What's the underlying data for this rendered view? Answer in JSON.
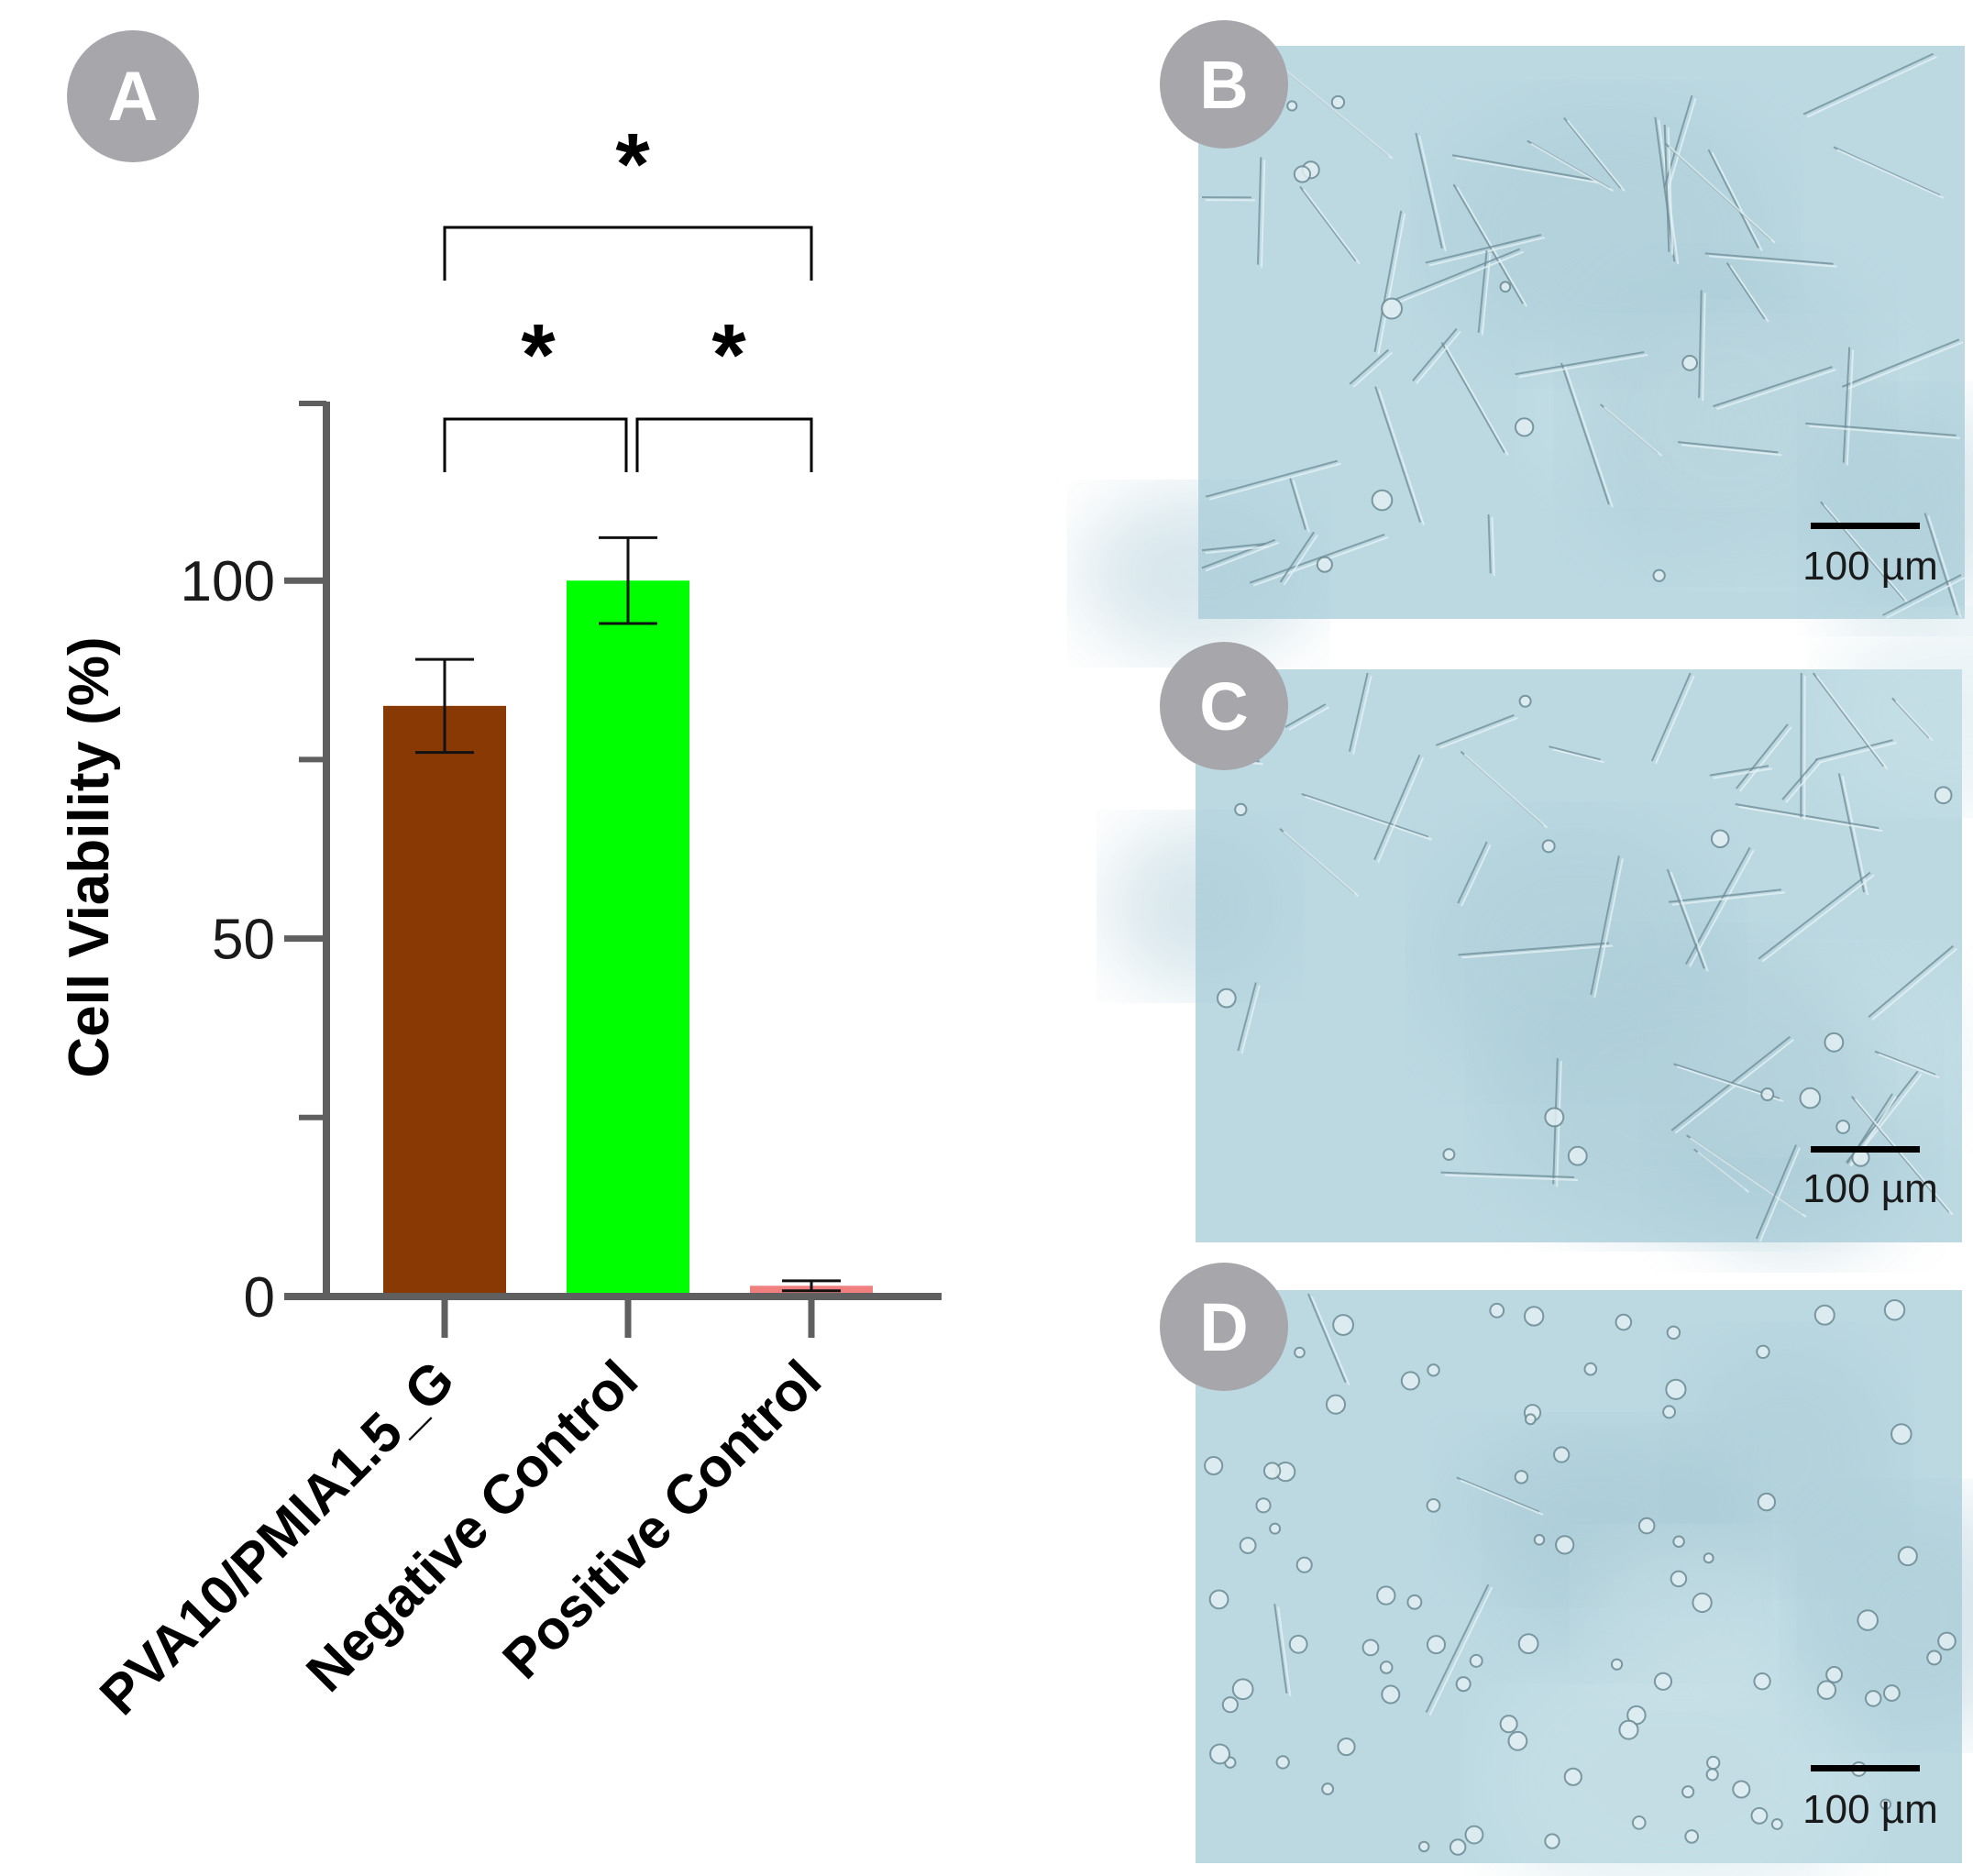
{
  "colors": {
    "axis": "#5f5f5f",
    "badge": "#a7a6ab",
    "micrograph_bg": "#bcd9e2",
    "micrograph_cell": "#6e8c96",
    "scalebar": "#000000"
  },
  "panels": {
    "a": {
      "label": "A"
    },
    "b": {
      "label": "B",
      "scale_bar": "100 µm"
    },
    "c": {
      "label": "C",
      "scale_bar": "100 µm"
    },
    "d": {
      "label": "D",
      "scale_bar": "100 µm"
    }
  },
  "chart_data": {
    "type": "bar",
    "ylabel": "Cell Viability (%)",
    "xlabel": "",
    "ylim": [
      0,
      125
    ],
    "yticks": [
      0,
      50,
      100
    ],
    "minor_yticks": [
      25,
      75
    ],
    "grid": false,
    "categories": [
      "PVA10/PMIA1.5_G",
      "Negative Control",
      "Positive Control"
    ],
    "values": [
      82.5,
      100,
      1.5
    ],
    "errors": [
      6.5,
      6,
      0.7
    ],
    "colors": [
      "#893a04",
      "#00ff00",
      "#f08080"
    ],
    "significance": [
      {
        "from": 0,
        "to": 1,
        "label": "*"
      },
      {
        "from": 1,
        "to": 2,
        "label": "*"
      },
      {
        "from": 0,
        "to": 2,
        "label": "*"
      }
    ]
  }
}
